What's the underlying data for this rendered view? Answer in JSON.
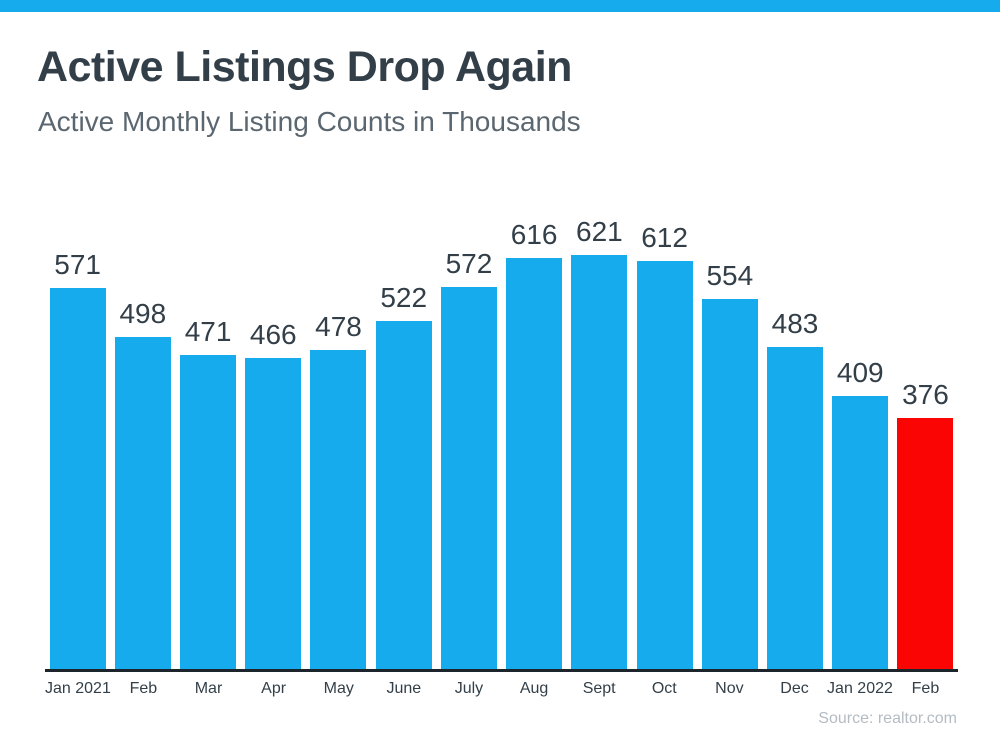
{
  "header": {
    "title": "Active Listings Drop Again",
    "subtitle": "Active Monthly Listing Counts in Thousands"
  },
  "footer": {
    "source": "Source: realtor.com"
  },
  "colors": {
    "accent_blue": "#15abec",
    "highlight_red": "#fa0404",
    "title_dark": "#333f48",
    "subtitle_gray": "#5b6770",
    "axis_dark": "#1d252c",
    "source_gray": "#b4bcc3"
  },
  "chart_data": {
    "type": "bar",
    "title": "Active Listings Drop Again",
    "subtitle": "Active Monthly Listing Counts in Thousands",
    "categories": [
      "Jan 2021",
      "Feb",
      "Mar",
      "Apr",
      "May",
      "June",
      "July",
      "Aug",
      "Sept",
      "Oct",
      "Nov",
      "Dec",
      "Jan 2022",
      "Feb"
    ],
    "values": [
      571,
      498,
      471,
      466,
      478,
      522,
      572,
      616,
      621,
      612,
      554,
      483,
      409,
      376
    ],
    "value_labels_shown": true,
    "xlabel": "",
    "ylabel": "",
    "ylim": [
      0,
      650
    ],
    "gridlines": false,
    "legend": false,
    "y_axis_shown": false,
    "highlight": {
      "index": 13,
      "category": "Feb",
      "value": 376,
      "color": "#fa0404"
    },
    "source": "Source: realtor.com"
  }
}
